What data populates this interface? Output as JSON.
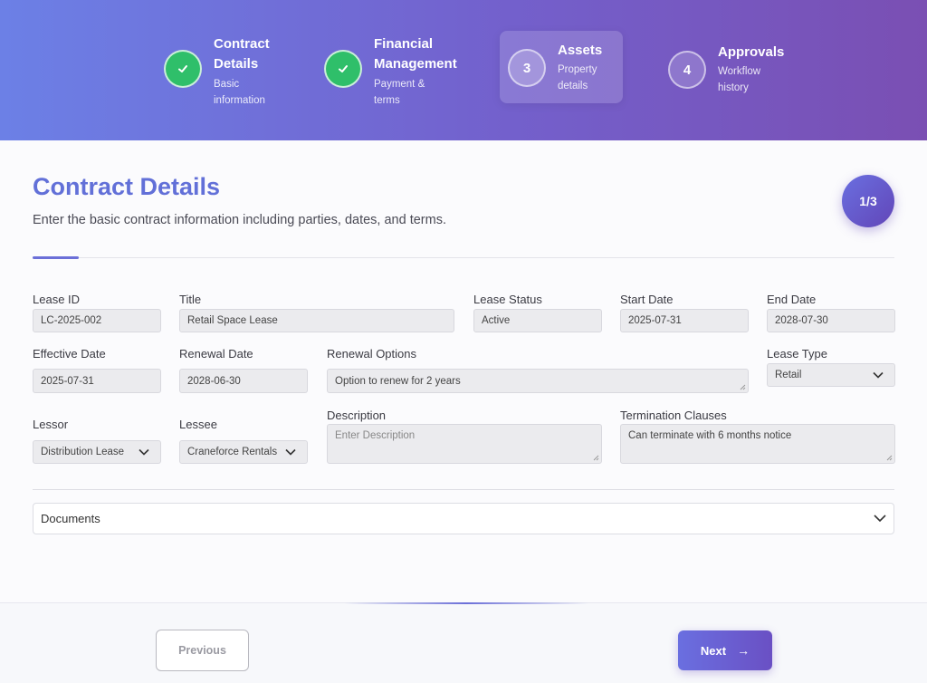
{
  "steps": [
    {
      "number": "",
      "title": "Contract Details",
      "subtitle": "Basic information",
      "state": "done",
      "icon": "check-icon"
    },
    {
      "number": "",
      "title": "Financial Management",
      "subtitle": "Payment & terms",
      "state": "done",
      "icon": "check-icon"
    },
    {
      "number": "3",
      "title": "Assets",
      "subtitle": "Property details",
      "state": "active"
    },
    {
      "number": "4",
      "title": "Approvals",
      "subtitle": "Workflow history",
      "state": "todo"
    }
  ],
  "page": {
    "title": "Contract Details",
    "description": "Enter the basic contract information including parties, dates, and terms.",
    "progress": "1/3"
  },
  "form": {
    "lease_id": {
      "label": "Lease ID",
      "value": "LC-2025-002"
    },
    "title": {
      "label": "Title",
      "value": "Retail Space Lease"
    },
    "lease_status": {
      "label": "Lease Status",
      "value": "Active"
    },
    "start_date": {
      "label": "Start Date",
      "value": "2025-07-31"
    },
    "end_date": {
      "label": "End Date",
      "value": "2028-07-30"
    },
    "effective_date": {
      "label": "Effective Date",
      "value": "2025-07-31"
    },
    "renewal_date": {
      "label": "Renewal Date",
      "value": "2028-06-30"
    },
    "renewal_options": {
      "label": "Renewal Options",
      "value": "Option to renew for 2 years"
    },
    "lease_type": {
      "label": "Lease Type",
      "value": "Retail"
    },
    "lessor": {
      "label": "Lessor",
      "value": "Distribution Lease"
    },
    "lessee": {
      "label": "Lessee",
      "value": "Craneforce Rentals"
    },
    "description": {
      "label": "Description",
      "value": "",
      "placeholder": "Enter Description"
    },
    "termination_clauses": {
      "label": "Termination Clauses",
      "value": "Can terminate with 6 months notice"
    }
  },
  "documents": {
    "label": "Documents"
  },
  "footer": {
    "previous_label": "Previous",
    "next_label": "Next"
  },
  "colors": {
    "accent": "#6b6fd8",
    "done": "#2fbf6a",
    "header_start": "#6c80e6",
    "header_end": "#7a4fb3"
  }
}
